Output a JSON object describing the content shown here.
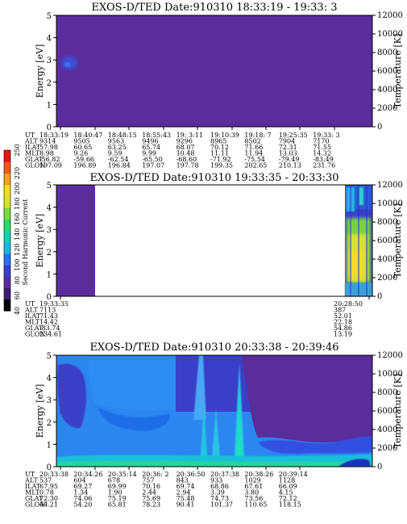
{
  "chart_data": [
    {
      "type": "heatmap",
      "title": "EXOS-D/TED  Date:910310  18:33:19 - 19:33: 3",
      "ylabel": "Energy [eV]",
      "y2label": "Temperature [K]",
      "ylim": [
        0,
        5
      ],
      "yticks": [
        0,
        1,
        2,
        3,
        4,
        5
      ],
      "y2lim": [
        0,
        12000
      ],
      "y2ticks": [
        0,
        2000,
        4000,
        6000,
        8000,
        10000,
        12000
      ],
      "description_values": {
        "background_level": 20,
        "blob_energy_eV": [
          2.6,
          3.2
        ],
        "blob_level": 60
      },
      "orbit": {
        "labels": [
          "UT",
          "ALT",
          "ILAT",
          "MLT",
          "GLAT",
          "GLON"
        ],
        "columns": [
          [
            "18:33:19",
            "9314",
            "57.98",
            "8.98",
            "-56.82",
            "197.09"
          ],
          [
            "18:40:47",
            "9505",
            "60.65",
            "9.26",
            "-59.66",
            "196.89"
          ],
          [
            "18:48:15",
            "9563",
            "63.25",
            "9.59",
            "-62.54",
            "196.84"
          ],
          [
            "18:55:43",
            "9496",
            "65.74",
            "9.99",
            "-65.50",
            "197.07"
          ],
          [
            "19: 3:11",
            "9296",
            "68.07",
            "10.48",
            "-68.60",
            "197.78"
          ],
          [
            "19:10:39",
            "8965",
            "70.12",
            "11.11",
            "-71.92",
            "199.35"
          ],
          [
            "19:18: 7",
            "8502",
            "71.66",
            "11.94",
            "-75.54",
            "202.65"
          ],
          [
            "19:25:35",
            "7904",
            "72.31",
            "13.03",
            "-79.49",
            "210.13"
          ],
          [
            "19:33: 3",
            "7170",
            "71.55",
            "14.32",
            "-83.49",
            "231.76"
          ]
        ]
      }
    },
    {
      "type": "heatmap",
      "title": "EXOS-D/TED  Date:910310  19:33:35 - 20:33:30",
      "ylabel": "Energy [eV]",
      "y2label": "Temperature [K]",
      "ylim": [
        0,
        5
      ],
      "yticks": [
        0,
        1,
        2,
        3,
        4,
        5
      ],
      "y2lim": [
        0,
        12000
      ],
      "y2ticks": [
        0,
        2000,
        4000,
        6000,
        8000,
        10000,
        12000
      ],
      "colorbar": {
        "label": "Second Harmonic Current",
        "range": [
          40,
          250
        ],
        "ticks": [
          40,
          60,
          80,
          100,
          120,
          140,
          160,
          180,
          200,
          220,
          250
        ]
      },
      "data_segments": [
        {
          "time_start": "19:33:35",
          "time_end": "19:38:30",
          "level": 20
        },
        {
          "time_start": "20:28:50",
          "time_end": "20:33:30",
          "level_profile": "high near top, ~150-190 between 1.5-3 eV"
        }
      ],
      "orbit": {
        "labels": [
          "UT",
          "ALT",
          "ILAT",
          "MLT",
          "GLAT",
          "GLON"
        ],
        "columns": [
          [
            "19:33:35",
            "7113",
            "71.43",
            "14.42",
            "-83.74",
            "234.61"
          ],
          [
            "20:28:50",
            "387",
            "52.01",
            "22.18",
            "54.86",
            "13.19"
          ]
        ]
      }
    },
    {
      "type": "heatmap",
      "title": "EXOS-D/TED  Date:910310  20:33:38 - 20:39:46",
      "ylabel": "Energy [eV]",
      "y2label": "Temperature [K]",
      "ylim": [
        0,
        5
      ],
      "yticks": [
        0,
        1,
        2,
        3,
        4,
        5
      ],
      "y2lim": [
        0,
        12000
      ],
      "y2ticks": [
        0,
        2000,
        4000,
        6000,
        8000,
        10000,
        12000
      ],
      "orbit": {
        "labels": [
          "UT",
          "ALT",
          "ILAT",
          "MLT",
          "GLAT",
          "GLON"
        ],
        "columns": [
          [
            "20:33:38",
            "537",
            "67.95",
            "0.78",
            "72.30",
            "44.21"
          ],
          [
            "20:34:26",
            "604",
            "69.27",
            "1.34",
            "74.06",
            "54.20"
          ],
          [
            "20:35:14",
            "678",
            "69.99",
            "1.90",
            "75.19",
            "65.81"
          ],
          [
            "20:36: 2",
            "757",
            "70.16",
            "2.44",
            "75.69",
            "78.23"
          ],
          [
            "20:36:50",
            "843",
            "69.74",
            "2.94",
            "75.48",
            "90.41"
          ],
          [
            "20:37:38",
            "933",
            "68.86",
            "3.39",
            "74.73",
            "101.37"
          ],
          [
            "20:38:26",
            "1029",
            "67.61",
            "3.80",
            "73.56",
            "110.65"
          ],
          [
            "20:39:14",
            "1128",
            "66.09",
            "4.15",
            "72.12",
            "118.15"
          ]
        ]
      }
    }
  ]
}
